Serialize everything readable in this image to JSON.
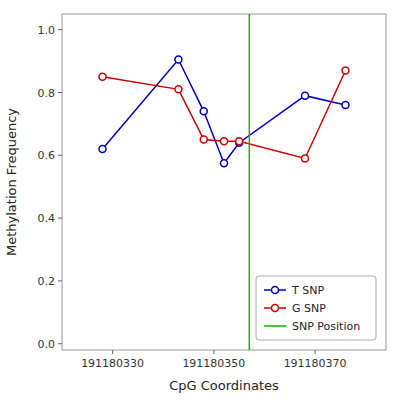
{
  "chart_data": {
    "type": "line",
    "x": [
      191180328,
      191180343,
      191180348,
      191180352,
      191180355,
      191180368,
      191180376
    ],
    "series": [
      {
        "name": "T SNP",
        "color": "#0000bb",
        "marker": "circle",
        "values": [
          0.62,
          0.905,
          0.74,
          0.575,
          0.64,
          0.79,
          0.76
        ]
      },
      {
        "name": "G SNP",
        "color": "#cc0000",
        "marker": "circle",
        "values": [
          0.85,
          0.81,
          0.65,
          0.645,
          0.645,
          0.59,
          0.87
        ]
      },
      {
        "name": "SNP Position",
        "color": "#00bb00",
        "type": "vline",
        "x": [
          191180357
        ]
      }
    ],
    "xlabel": "CpG Coordinates",
    "ylabel": "Methylation Frequency",
    "xlim": [
      191180320,
      191180384
    ],
    "ylim": [
      -0.02,
      1.05
    ],
    "xticks": [
      191180330,
      191180350,
      191180370
    ],
    "yticks": [
      {
        "value": 0.0,
        "label": "0.0"
      },
      0.2,
      0.4,
      0.6,
      0.8,
      {
        "value": 1.0,
        "label": "1.0"
      }
    ],
    "grid": false,
    "legend": "lower right"
  }
}
